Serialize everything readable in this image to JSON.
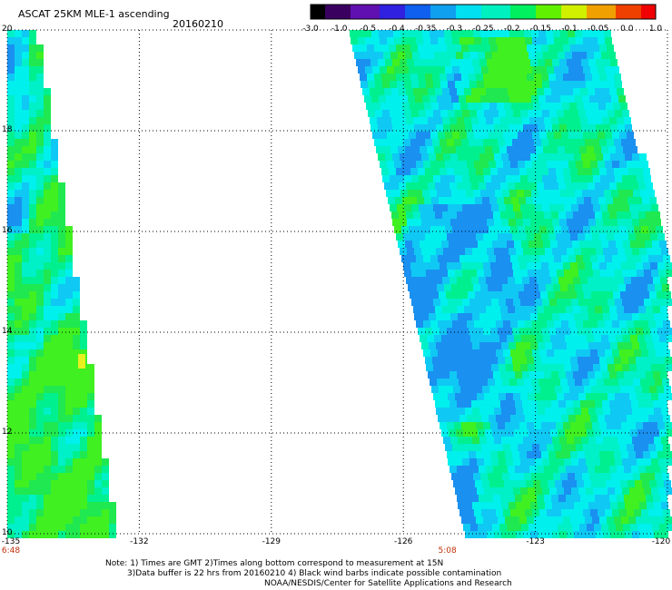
{
  "header": {
    "title": "ASCAT 25KM MLE-1 ascending",
    "date": "20160210"
  },
  "colorbar": {
    "labels": [
      "-3.0",
      "-1.0",
      "-0.5",
      "-0.4",
      "-0.35",
      "-0.3",
      "-0.25",
      "-0.2",
      "-0.15",
      "-0.1",
      "-0.05",
      "0.0",
      "1.0"
    ],
    "colors": [
      "#1a0020",
      "#3a0070",
      "#5a10c0",
      "#2040e0",
      "#1080f0",
      "#10c0f0",
      "#00f0f0",
      "#00e0a0",
      "#20e020",
      "#80f000",
      "#f0f000",
      "#f08000",
      "#f02000"
    ]
  },
  "map": {
    "lon_range": [
      -135,
      -120
    ],
    "lat_range": [
      10,
      20
    ],
    "lon_ticks": [
      "-135",
      "-132",
      "-129",
      "-126",
      "-123",
      "-120"
    ],
    "lat_ticks": [
      "20",
      "18",
      "16",
      "14",
      "12",
      "10"
    ],
    "pass_times": [
      {
        "lon": -135,
        "label": "6:48"
      },
      {
        "lon": -125,
        "label": "5:08"
      }
    ]
  },
  "notes": {
    "line1": "Note: 1) Times are GMT 2)Times along bottom correspond to measurement at 15N",
    "line2": "3)Data buffer is 22 hrs from 20160210 4) Black wind barbs indicate possible contamination",
    "line3": "NOAA/NESDIS/Center for Satellite Applications and Research"
  }
}
